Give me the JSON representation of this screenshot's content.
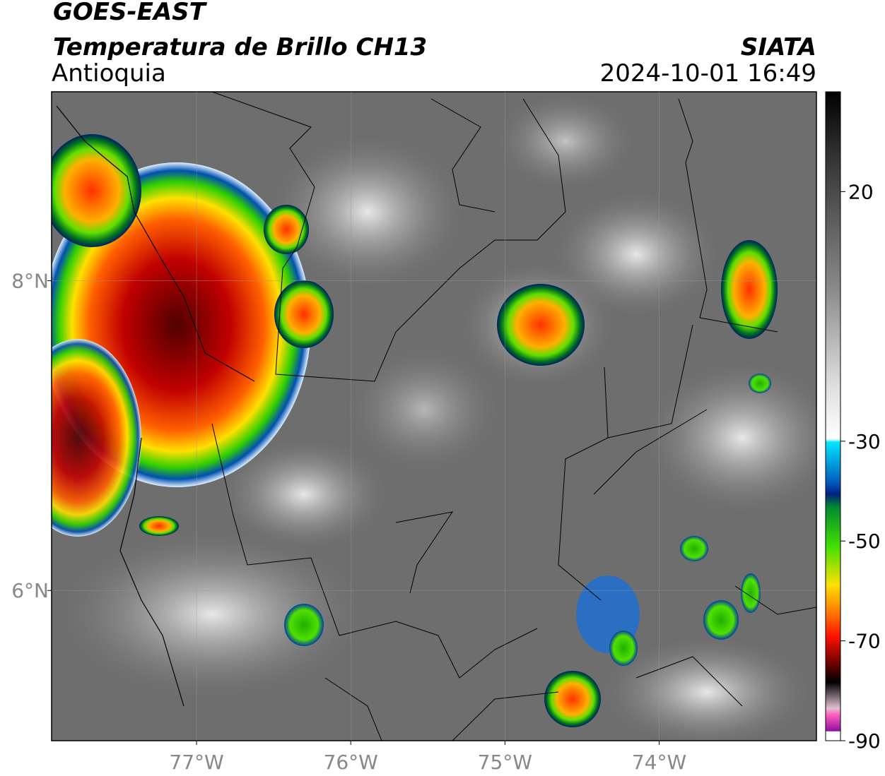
{
  "header": {
    "title": "GOES-EAST",
    "subtitle": "Temperatura de Brillo CH13",
    "region": "Antioquia",
    "agency": "SIATA",
    "datetime": "2024-10-01 16:49"
  },
  "map": {
    "xlim": [
      -77.94,
      -72.98
    ],
    "ylim": [
      5.03,
      9.22
    ],
    "xticks": [
      {
        "value": -77,
        "label": "77°W"
      },
      {
        "value": -76,
        "label": "76°W"
      },
      {
        "value": -75,
        "label": "75°W"
      },
      {
        "value": -74,
        "label": "74°W"
      }
    ],
    "yticks": [
      {
        "value": 8,
        "label": "8°N"
      },
      {
        "value": 6,
        "label": "6°N"
      }
    ],
    "grid": true
  },
  "colorbar": {
    "range": [
      -90,
      40
    ],
    "ticks": [
      20,
      -30,
      -50,
      -70,
      -90
    ]
  }
}
